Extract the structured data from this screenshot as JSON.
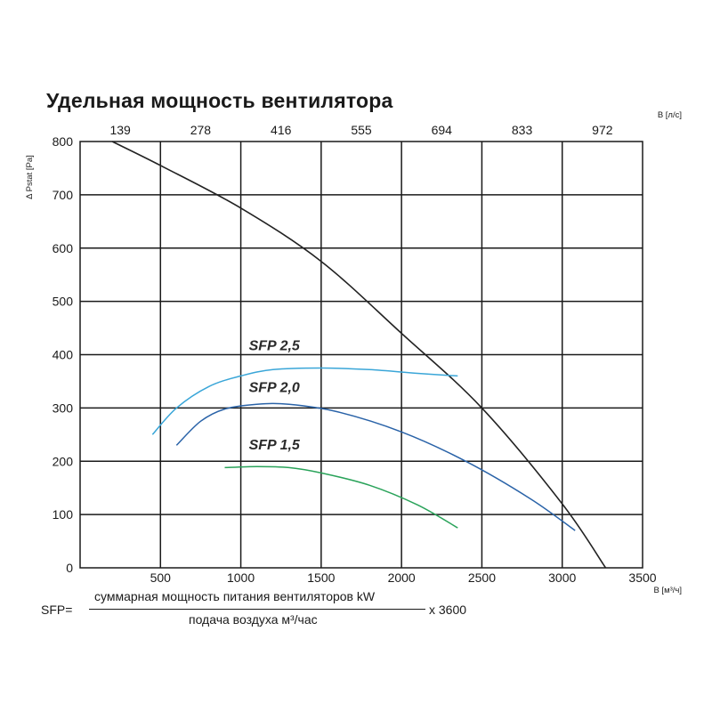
{
  "chart_data": {
    "type": "line",
    "title": "Удельная мощность вентилятора",
    "ylabel": "Δ Pstat [Pa]",
    "xlabel_bottom": "В [м³/ч]",
    "xlabel_top": "В [л/с]",
    "ylim": [
      0,
      800
    ],
    "xlim": [
      0,
      3500
    ],
    "y_ticks": [
      "0",
      "100",
      "200",
      "300",
      "400",
      "500",
      "600",
      "700",
      "800"
    ],
    "x_ticks_bottom": [
      "500",
      "1000",
      "1500",
      "2000",
      "2500",
      "3000",
      "3500"
    ],
    "x_ticks_top": [
      "139",
      "278",
      "416",
      "555",
      "694",
      "833",
      "972"
    ],
    "grid": true,
    "series": [
      {
        "name": "",
        "color": "#222222",
        "points": [
          [
            200,
            800
          ],
          [
            500,
            755
          ],
          [
            1000,
            675
          ],
          [
            1500,
            575
          ],
          [
            2000,
            440
          ],
          [
            2500,
            300
          ],
          [
            3000,
            120
          ],
          [
            3270,
            0
          ]
        ]
      },
      {
        "name": "SFP 2,5",
        "color": "#3aa6d8",
        "points": [
          [
            450,
            250
          ],
          [
            600,
            300
          ],
          [
            800,
            340
          ],
          [
            1000,
            360
          ],
          [
            1200,
            372
          ],
          [
            1500,
            375
          ],
          [
            1800,
            372
          ],
          [
            2100,
            365
          ],
          [
            2350,
            360
          ]
        ]
      },
      {
        "name": "SFP 2,0",
        "color": "#2a63a8",
        "points": [
          [
            600,
            230
          ],
          [
            750,
            275
          ],
          [
            900,
            298
          ],
          [
            1100,
            307
          ],
          [
            1300,
            307
          ],
          [
            1600,
            293
          ],
          [
            2000,
            255
          ],
          [
            2400,
            200
          ],
          [
            2800,
            130
          ],
          [
            3080,
            70
          ]
        ]
      },
      {
        "name": "SFP 1,5",
        "color": "#2aa35a",
        "points": [
          [
            900,
            188
          ],
          [
            1100,
            190
          ],
          [
            1300,
            188
          ],
          [
            1500,
            178
          ],
          [
            1800,
            155
          ],
          [
            2100,
            118
          ],
          [
            2350,
            75
          ]
        ]
      }
    ]
  },
  "formula": {
    "lhs": "SFP=",
    "numerator": "суммарная мощность питания вентиляторов kW",
    "denominator": "подача воздуха м³/час",
    "multiplier": "x 3600"
  }
}
